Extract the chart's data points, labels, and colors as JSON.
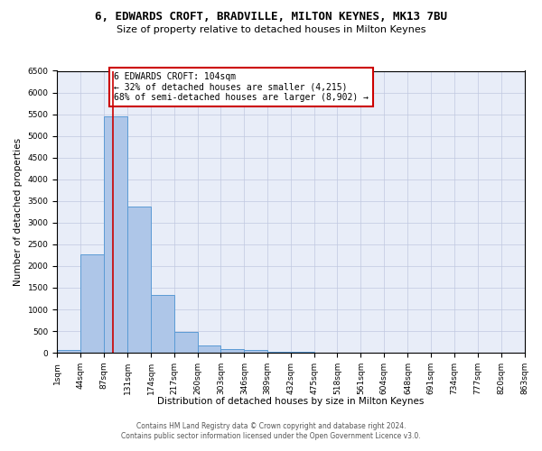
{
  "title": "6, EDWARDS CROFT, BRADVILLE, MILTON KEYNES, MK13 7BU",
  "subtitle": "Size of property relative to detached houses in Milton Keynes",
  "xlabel": "Distribution of detached houses by size in Milton Keynes",
  "ylabel": "Number of detached properties",
  "footer_line1": "Contains HM Land Registry data © Crown copyright and database right 2024.",
  "footer_line2": "Contains public sector information licensed under the Open Government Licence v3.0.",
  "bin_edges": [
    1,
    44,
    87,
    131,
    174,
    217,
    260,
    303,
    346,
    389,
    432,
    475,
    518,
    561,
    604,
    648,
    691,
    734,
    777,
    820,
    863
  ],
  "bar_heights": [
    75,
    2275,
    5450,
    3375,
    1325,
    475,
    165,
    80,
    55,
    30,
    15,
    10,
    5,
    3,
    2,
    1,
    1,
    0,
    0,
    0
  ],
  "bar_color": "#aec6e8",
  "bar_edge_color": "#5b9bd5",
  "property_size": 104,
  "property_line_color": "#cc0000",
  "annotation_text": "6 EDWARDS CROFT: 104sqm\n← 32% of detached houses are smaller (4,215)\n68% of semi-detached houses are larger (8,902) →",
  "annotation_box_color": "#cc0000",
  "annotation_bg_color": "#ffffff",
  "ylim": [
    0,
    6500
  ],
  "yticks": [
    0,
    500,
    1000,
    1500,
    2000,
    2500,
    3000,
    3500,
    4000,
    4500,
    5000,
    5500,
    6000,
    6500
  ],
  "grid_color": "#c0c8e0",
  "bg_color": "#e8edf8",
  "title_fontsize": 9,
  "subtitle_fontsize": 8,
  "axis_label_fontsize": 7.5,
  "tick_fontsize": 6.5,
  "annotation_fontsize": 7,
  "footer_fontsize": 5.5
}
